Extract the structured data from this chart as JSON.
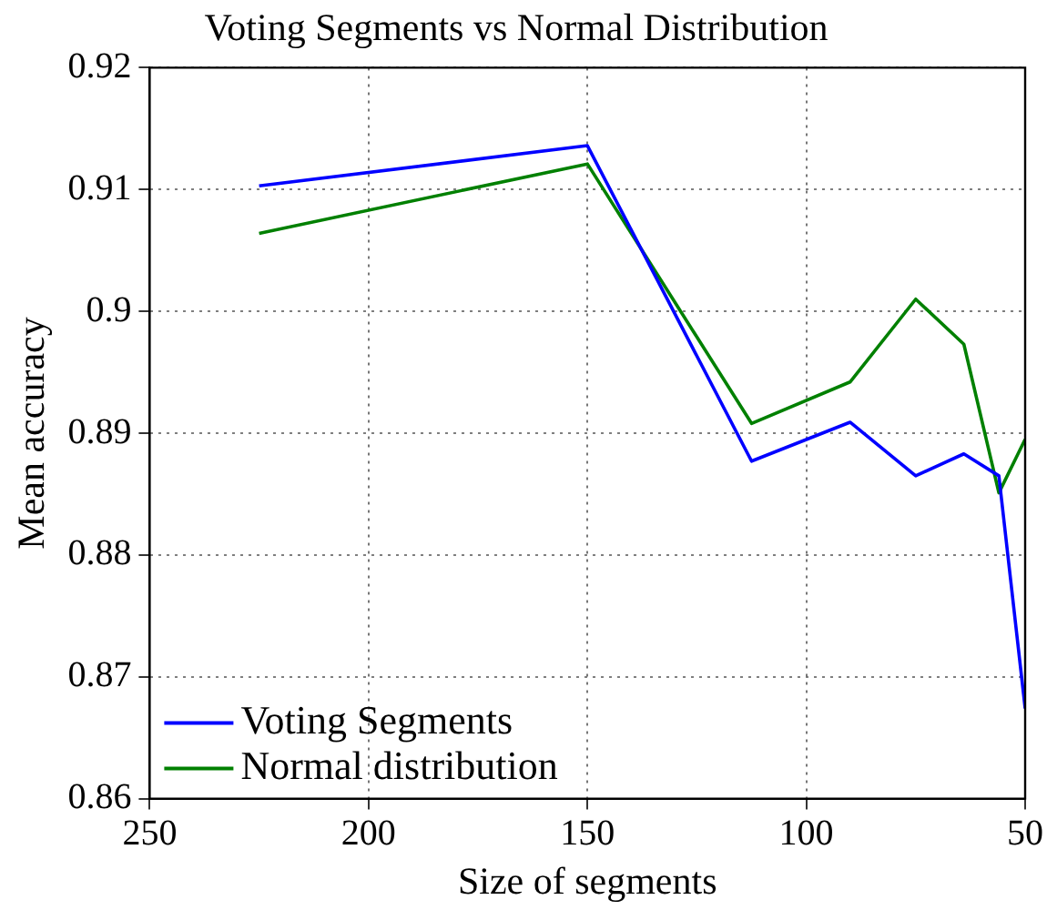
{
  "chart_data": {
    "type": "line",
    "title": "Voting Segments vs Normal Distribution",
    "xlabel": "Size of segments",
    "ylabel": "Mean accuracy",
    "x": [
      225,
      150,
      112.5,
      90,
      75,
      64,
      56,
      50
    ],
    "series": [
      {
        "name": "Voting Segments",
        "color": "#0000ff",
        "values": [
          0.9103,
          0.9136,
          0.8877,
          0.8909,
          0.8865,
          0.8883,
          0.8865,
          0.8674
        ]
      },
      {
        "name": "Normal distribution",
        "color": "#008000",
        "values": [
          0.9064,
          0.9121,
          0.8908,
          0.8942,
          0.901,
          0.8973,
          0.8851,
          0.8895
        ]
      }
    ],
    "xlim": [
      250,
      50
    ],
    "xticks": [
      250,
      200,
      150,
      100,
      50
    ],
    "ylim": [
      0.86,
      0.92
    ],
    "yticks": [
      0.86,
      0.87,
      0.88,
      0.89,
      0.9,
      0.91,
      0.92
    ],
    "grid": true,
    "legend": "bottom left",
    "marker": "none",
    "line_style": "solid"
  }
}
